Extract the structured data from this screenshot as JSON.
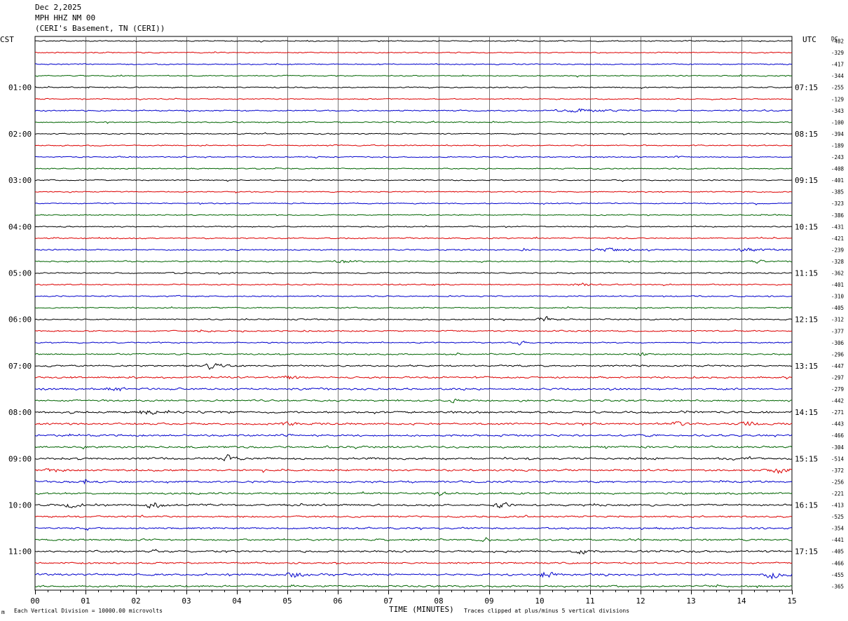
{
  "header": {
    "date": "Dec 2,2025",
    "station": "MPH HHZ NM 00",
    "location": "(CERI's Basement, TN (CERI))"
  },
  "left_zone": "CST",
  "right_zone": "UTC",
  "dc_label": "DC",
  "footer": {
    "scale_note": "Each Vertical Division = 10000.00 microvolts",
    "clip_note": "Traces clipped at plus/minus 5 vertical divisions",
    "mark": "m"
  },
  "chart_data": {
    "type": "line",
    "title": "",
    "xlabel": "TIME (MINUTES)",
    "ylabel": "",
    "xlim": [
      0,
      15
    ],
    "x_ticks": [
      "00",
      "01",
      "02",
      "03",
      "04",
      "05",
      "06",
      "07",
      "08",
      "09",
      "10",
      "11",
      "12",
      "13",
      "14",
      "15"
    ],
    "grid": true,
    "num_traces": 48,
    "trace_colors": [
      "#000000",
      "#dd0000",
      "#0000cc",
      "#006400"
    ],
    "left_time_labels": [
      {
        "trace": 4,
        "label": "01:00"
      },
      {
        "trace": 8,
        "label": "02:00"
      },
      {
        "trace": 12,
        "label": "03:00"
      },
      {
        "trace": 16,
        "label": "04:00"
      },
      {
        "trace": 20,
        "label": "05:00"
      },
      {
        "trace": 24,
        "label": "06:00"
      },
      {
        "trace": 28,
        "label": "07:00"
      },
      {
        "trace": 32,
        "label": "08:00"
      },
      {
        "trace": 36,
        "label": "09:00"
      },
      {
        "trace": 40,
        "label": "10:00"
      },
      {
        "trace": 44,
        "label": "11:00"
      }
    ],
    "right_time_labels": [
      {
        "trace": 4,
        "label": "07:15"
      },
      {
        "trace": 8,
        "label": "08:15"
      },
      {
        "trace": 12,
        "label": "09:15"
      },
      {
        "trace": 16,
        "label": "10:15"
      },
      {
        "trace": 20,
        "label": "11:15"
      },
      {
        "trace": 24,
        "label": "12:15"
      },
      {
        "trace": 28,
        "label": "13:15"
      },
      {
        "trace": 32,
        "label": "14:15"
      },
      {
        "trace": 36,
        "label": "15:15"
      },
      {
        "trace": 40,
        "label": "16:15"
      },
      {
        "trace": 44,
        "label": "17:15"
      }
    ],
    "dc_offsets": [
      -482,
      -329,
      -417,
      -344,
      -255,
      -129,
      -343,
      -100,
      -394,
      -189,
      -243,
      -408,
      -401,
      -385,
      -323,
      -386,
      -431,
      -421,
      -239,
      -328,
      -362,
      -401,
      -310,
      -405,
      -312,
      -377,
      -306,
      -296,
      -447,
      -297,
      -279,
      -442,
      -271,
      -443,
      -466,
      -304,
      -514,
      -372,
      -256,
      -221,
      -413,
      -525,
      -354,
      -441,
      -405,
      -466,
      -455,
      -365
    ],
    "noise_level": [
      0.9,
      0.9,
      0.9,
      0.9,
      0.9,
      0.9,
      1.0,
      0.9,
      0.9,
      0.9,
      0.9,
      0.9,
      0.9,
      0.9,
      0.9,
      0.9,
      0.9,
      1.0,
      1.1,
      1.1,
      1.0,
      1.0,
      1.0,
      1.0,
      1.0,
      1.1,
      1.0,
      1.1,
      1.3,
      1.4,
      1.5,
      1.4,
      1.6,
      1.5,
      1.5,
      1.5,
      1.6,
      1.6,
      1.5,
      1.5,
      1.5,
      1.4,
      1.4,
      1.4,
      1.5,
      1.4,
      1.5,
      1.4
    ],
    "events": [
      {
        "trace": 6,
        "minute": 10.7,
        "amp": 2.5,
        "dur": 1.5
      },
      {
        "trace": 10,
        "minute": 12.7,
        "amp": 3.0,
        "dur": 0.1
      },
      {
        "trace": 18,
        "minute": 9.7,
        "amp": 3.0,
        "dur": 0.2
      },
      {
        "trace": 18,
        "minute": 11.4,
        "amp": 2.5,
        "dur": 0.8
      },
      {
        "trace": 18,
        "minute": 14.1,
        "amp": 3.0,
        "dur": 0.5
      },
      {
        "trace": 19,
        "minute": 6.1,
        "amp": 3.0,
        "dur": 0.4
      },
      {
        "trace": 19,
        "minute": 14.3,
        "amp": 2.5,
        "dur": 0.3
      },
      {
        "trace": 21,
        "minute": 10.8,
        "amp": 3.0,
        "dur": 0.4
      },
      {
        "trace": 24,
        "minute": 10.1,
        "amp": 5.0,
        "dur": 0.4
      },
      {
        "trace": 25,
        "minute": 3.3,
        "amp": 4.0,
        "dur": 0.2
      },
      {
        "trace": 25,
        "minute": 5.3,
        "amp": 3.5,
        "dur": 0.1
      },
      {
        "trace": 26,
        "minute": 9.6,
        "amp": 4.0,
        "dur": 0.2
      },
      {
        "trace": 27,
        "minute": 12.0,
        "amp": 3.0,
        "dur": 0.2
      },
      {
        "trace": 28,
        "minute": 3.5,
        "amp": 8.0,
        "dur": 0.3
      },
      {
        "trace": 29,
        "minute": 5.0,
        "amp": 4.0,
        "dur": 0.3
      },
      {
        "trace": 30,
        "minute": 1.5,
        "amp": 3.5,
        "dur": 0.3
      },
      {
        "trace": 31,
        "minute": 8.3,
        "amp": 5.0,
        "dur": 0.2
      },
      {
        "trace": 32,
        "minute": 2.2,
        "amp": 4.0,
        "dur": 0.4
      },
      {
        "trace": 33,
        "minute": 5.0,
        "amp": 4.0,
        "dur": 0.3
      },
      {
        "trace": 33,
        "minute": 12.7,
        "amp": 3.5,
        "dur": 0.4
      },
      {
        "trace": 33,
        "minute": 14.1,
        "amp": 3.5,
        "dur": 0.4
      },
      {
        "trace": 36,
        "minute": 3.8,
        "amp": 8.0,
        "dur": 0.2
      },
      {
        "trace": 37,
        "minute": 0.3,
        "amp": 5.0,
        "dur": 0.3
      },
      {
        "trace": 37,
        "minute": 14.7,
        "amp": 8.0,
        "dur": 0.4
      },
      {
        "trace": 38,
        "minute": 1.0,
        "amp": 5.0,
        "dur": 0.2
      },
      {
        "trace": 39,
        "minute": 8.0,
        "amp": 5.0,
        "dur": 0.2
      },
      {
        "trace": 40,
        "minute": 0.7,
        "amp": 5.0,
        "dur": 0.3
      },
      {
        "trace": 40,
        "minute": 2.3,
        "amp": 7.0,
        "dur": 0.3
      },
      {
        "trace": 40,
        "minute": 9.2,
        "amp": 5.0,
        "dur": 0.3
      },
      {
        "trace": 43,
        "minute": 8.9,
        "amp": 4.0,
        "dur": 0.2
      },
      {
        "trace": 44,
        "minute": 10.8,
        "amp": 4.0,
        "dur": 0.3
      },
      {
        "trace": 46,
        "minute": 5.1,
        "amp": 7.0,
        "dur": 0.3
      },
      {
        "trace": 46,
        "minute": 10.1,
        "amp": 6.0,
        "dur": 0.3
      },
      {
        "trace": 46,
        "minute": 14.6,
        "amp": 6.0,
        "dur": 0.4
      }
    ]
  }
}
